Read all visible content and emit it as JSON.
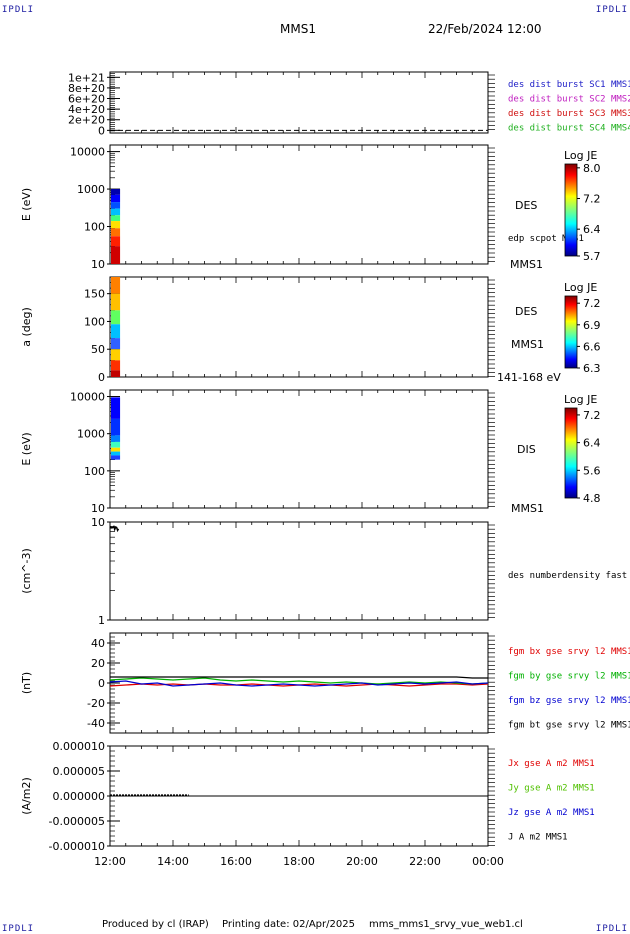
{
  "corners": {
    "top_left": "IPDLI",
    "top_right": "IPDLI",
    "bottom_left": "IPDLI",
    "bottom_right": "IPDLI"
  },
  "header": {
    "spacecraft": "MMS1",
    "datetime": "22/Feb/2024 12:00"
  },
  "footer": {
    "produced_by": "Produced by cl (IRAP)",
    "printing_date": "Printing date: 02/Apr/2025",
    "filename": "mms_mms1_srvy_vue_web1.cl"
  },
  "chart_data": [
    {
      "type": "line",
      "id": "burst-flags",
      "y_ticks": [
        {
          "v": 0,
          "t": "0"
        },
        {
          "v": 2e+20,
          "t": "2e+20"
        },
        {
          "v": 4e+20,
          "t": "4e+20"
        },
        {
          "v": 6e+20,
          "t": "6e+20"
        },
        {
          "v": 8e+20,
          "t": "8e+20"
        },
        {
          "v": 1e+21,
          "t": "1e+21"
        }
      ],
      "ylim": [
        -5e+19,
        1.1e+21
      ],
      "legend": [
        {
          "text": "des dist burst SC1 MMS1",
          "color": "#2020c8"
        },
        {
          "text": "des dist burst SC2 MMS2",
          "color": "#c020c0"
        },
        {
          "text": "des dist burst SC3 MMS3",
          "color": "#d01010"
        },
        {
          "text": "des dist burst SC4 MMS4",
          "color": "#20b020"
        }
      ],
      "series": [
        {
          "values": "constant 0 (dashed)"
        }
      ]
    },
    {
      "type": "heatmap",
      "id": "des-energy",
      "ylabel": "E (eV)",
      "log": true,
      "ylim": [
        10,
        15000
      ],
      "y_ticks": [
        {
          "v": 10,
          "t": "10"
        },
        {
          "v": 100,
          "t": "100"
        },
        {
          "v": 1000,
          "t": "1000"
        },
        {
          "v": 10000,
          "t": "10000"
        }
      ],
      "labels": [
        {
          "text": "DES"
        },
        {
          "text": "edp scpot MMS1"
        },
        {
          "text": "MMS1"
        }
      ],
      "colorbar": {
        "title": "Log JE",
        "min": 5.7,
        "max": 8.1,
        "ticks": [
          "8.0",
          "7.2",
          "6.4",
          "5.7"
        ]
      },
      "data_window": [
        "12:00",
        "12:17"
      ]
    },
    {
      "type": "heatmap",
      "id": "des-pitch",
      "ylabel": "a (deg)",
      "ylim": [
        0,
        180
      ],
      "y_ticks": [
        {
          "v": 0,
          "t": "0"
        },
        {
          "v": 50,
          "t": "50"
        },
        {
          "v": 100,
          "t": "100"
        },
        {
          "v": 150,
          "t": "150"
        }
      ],
      "labels": [
        {
          "text": "DES"
        },
        {
          "text": "MMS1"
        },
        {
          "text": "141-168 eV"
        }
      ],
      "colorbar": {
        "title": "Log JE",
        "min": 6.3,
        "max": 7.3,
        "ticks": [
          "7.2",
          "6.9",
          "6.6",
          "6.3"
        ]
      },
      "data_window": [
        "12:00",
        "12:17"
      ]
    },
    {
      "type": "heatmap",
      "id": "dis-energy",
      "ylabel": "E (eV)",
      "log": true,
      "ylim": [
        10,
        15000
      ],
      "y_ticks": [
        {
          "v": 10,
          "t": "10"
        },
        {
          "v": 100,
          "t": "100"
        },
        {
          "v": 1000,
          "t": "1000"
        },
        {
          "v": 10000,
          "t": "10000"
        }
      ],
      "labels": [
        {
          "text": "DIS"
        },
        {
          "text": "MMS1"
        }
      ],
      "colorbar": {
        "title": "Log JE",
        "min": 4.8,
        "max": 7.4,
        "ticks": [
          "7.2",
          "6.4",
          "5.6",
          "4.8"
        ]
      },
      "data_window": [
        "12:00",
        "12:17"
      ]
    },
    {
      "type": "line",
      "id": "density",
      "ylabel": "(cm^-3)",
      "log": true,
      "ylim": [
        1,
        10
      ],
      "y_ticks": [
        {
          "v": 1,
          "t": "1"
        },
        {
          "v": 10,
          "t": "10"
        }
      ],
      "legend": [
        {
          "text": "des numberdensity fast M",
          "color": "#000000"
        }
      ],
      "series": [
        {
          "x": [
            0,
            0.03,
            0.06,
            0.09,
            0.12,
            0.15,
            0.18,
            0.21,
            0.24,
            0.27
          ],
          "values": [
            8.6,
            8.9,
            8.7,
            8.8,
            9.0,
            8.4,
            8.9,
            8.8,
            8.2,
            8.5
          ]
        }
      ]
    },
    {
      "type": "line",
      "id": "fgm",
      "ylabel": "(nT)",
      "ylim": [
        -50,
        50
      ],
      "y_ticks": [
        {
          "v": -40,
          "t": "-40"
        },
        {
          "v": -20,
          "t": "-20"
        },
        {
          "v": 0,
          "t": "0"
        },
        {
          "v": 20,
          "t": "20"
        },
        {
          "v": 40,
          "t": "40"
        }
      ],
      "legend": [
        {
          "text": "fgm bx gse srvy l2 MMS1",
          "color": "#e00000"
        },
        {
          "text": "fgm by gse srvy l2 MMS1",
          "color": "#00b000"
        },
        {
          "text": "fgm bz gse srvy l2 MMS1",
          "color": "#0000d0"
        },
        {
          "text": "fgm bt gse srvy l2 MMS1",
          "color": "#000000"
        }
      ],
      "series": [
        {
          "x": [
            0,
            0.5,
            1,
            1.5,
            2,
            2.5,
            3,
            3.5,
            4,
            4.5,
            5,
            5.5,
            6,
            6.5,
            7,
            7.5,
            8,
            8.5,
            9,
            9.5,
            10,
            10.5,
            11,
            11.5,
            12
          ],
          "values": [
            -3,
            -2,
            -1,
            -2,
            -1,
            -2,
            -1,
            -2,
            -2,
            -1,
            -2,
            -3,
            -2,
            -1,
            -2,
            -3,
            -2,
            -1,
            -2,
            -3,
            -2,
            -1,
            -1,
            -2,
            -1
          ]
        },
        {
          "x": [
            0,
            0.5,
            1,
            1.5,
            2,
            2.5,
            3,
            3.5,
            4,
            4.5,
            5,
            5.5,
            6,
            6.5,
            7,
            7.5,
            8,
            8.5,
            9,
            9.5,
            10,
            10.5,
            11,
            11.5,
            12
          ],
          "values": [
            3,
            4,
            5,
            4,
            3,
            4,
            5,
            3,
            2,
            3,
            2,
            1,
            2,
            1,
            0,
            1,
            0,
            -1,
            0,
            1,
            0,
            1,
            0,
            -1,
            0
          ]
        },
        {
          "x": [
            0,
            0.5,
            1,
            1.5,
            2,
            2.5,
            3,
            3.5,
            4,
            4.5,
            5,
            5.5,
            6,
            6.5,
            7,
            7.5,
            8,
            8.5,
            9,
            9.5,
            10,
            10.5,
            11,
            11.5,
            12
          ],
          "values": [
            1,
            2,
            -1,
            0,
            -3,
            -2,
            -1,
            0,
            -2,
            -3,
            -2,
            -1,
            -2,
            -3,
            -2,
            -1,
            0,
            -2,
            -1,
            0,
            -1,
            0,
            1,
            -1,
            0
          ]
        },
        {
          "x": [
            0,
            0.5,
            1,
            1.5,
            2,
            2.5,
            3,
            3.5,
            4,
            4.5,
            5,
            5.5,
            6,
            6.5,
            7,
            7.5,
            8,
            8.5,
            9,
            9.5,
            10,
            10.5,
            11,
            11.5,
            12
          ],
          "values": [
            6,
            6,
            6,
            6,
            6,
            6,
            6,
            6,
            6,
            6,
            6,
            6,
            6,
            6,
            6,
            6,
            6,
            6,
            6,
            6,
            6,
            6,
            6,
            5,
            5
          ]
        }
      ]
    },
    {
      "type": "line",
      "id": "current",
      "ylabel": "(A/m2)",
      "ylim": [
        -1e-05,
        1e-05
      ],
      "y_ticks": [
        {
          "v": -1e-05,
          "t": "-0.000010"
        },
        {
          "v": -5e-06,
          "t": "-0.000005"
        },
        {
          "v": 0,
          "t": "0.000000"
        },
        {
          "v": 5e-06,
          "t": "0.000005"
        },
        {
          "v": 1e-05,
          "t": "0.000010"
        }
      ],
      "legend": [
        {
          "text": "Jx gse A m2 MMS1",
          "color": "#e00000"
        },
        {
          "text": "Jy gse A m2 MMS1",
          "color": "#50c000"
        },
        {
          "text": "Jz gse A m2 MMS1",
          "color": "#0000d0"
        },
        {
          "text": "J A m2 MMS1",
          "color": "#000000"
        }
      ],
      "series": [
        {
          "values": "~0 between 12:00 and 14:30"
        }
      ]
    }
  ],
  "x_ticks": [
    "12:00",
    "14:00",
    "16:00",
    "18:00",
    "20:00",
    "22:00",
    "00:00"
  ]
}
